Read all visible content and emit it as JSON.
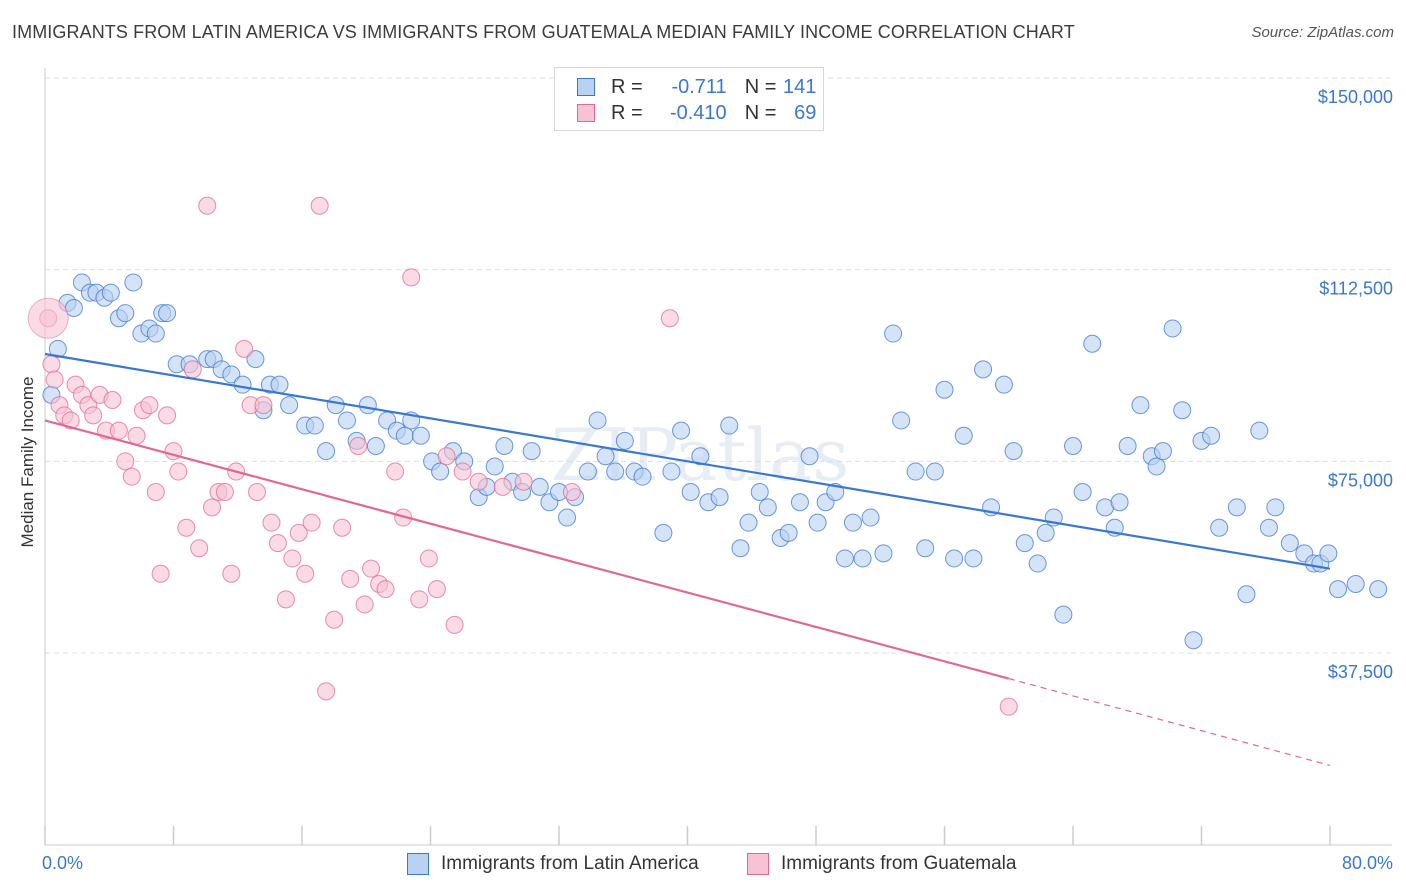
{
  "title": "IMMIGRANTS FROM LATIN AMERICA VS IMMIGRANTS FROM GUATEMALA MEDIAN FAMILY INCOME CORRELATION CHART",
  "source": "Source: ZipAtlas.com",
  "legend": {
    "r_label": "R =",
    "n_label": "N =",
    "rows": [
      {
        "r": "-0.711",
        "n": "141"
      },
      {
        "r": "-0.410",
        "n": "69"
      }
    ]
  },
  "watermark": "ZIPatlas",
  "colors": {
    "blue": "#3a78d0",
    "blue_fill": "#b9d1f2",
    "pink": "#e0698f",
    "pink_fill": "#f7c2d3",
    "tick_label": "#3a78d0",
    "grid": "#dedede"
  },
  "chart_data": {
    "type": "scatter",
    "title": "IMMIGRANTS FROM LATIN AMERICA VS IMMIGRANTS FROM GUATEMALA MEDIAN FAMILY INCOME CORRELATION CHART",
    "xlabel": "",
    "ylabel": "Median Family Income",
    "xlim": [
      0,
      80
    ],
    "ylim": [
      10000,
      155000
    ],
    "x_tick_labels": [
      {
        "value": 0,
        "label": "0.0%"
      },
      {
        "value": 80,
        "label": "80.0%"
      }
    ],
    "y_ticks": [
      {
        "value": 37500,
        "label": "$37,500"
      },
      {
        "value": 75000,
        "label": "$75,000"
      },
      {
        "value": 112500,
        "label": "$112,500"
      },
      {
        "value": 150000,
        "label": "$150,000"
      }
    ],
    "series": [
      {
        "name": "Immigrants from Latin America",
        "r": -0.711,
        "n": 141,
        "trend": {
          "x0": 0,
          "y0": 96000,
          "x1": 80,
          "y1": 54000
        },
        "points": [
          [
            0.4,
            88
          ],
          [
            0.8,
            97
          ],
          [
            1.4,
            106
          ],
          [
            1.8,
            105
          ],
          [
            2.3,
            110
          ],
          [
            2.8,
            108
          ],
          [
            3.2,
            108
          ],
          [
            3.7,
            107
          ],
          [
            4.1,
            108
          ],
          [
            4.6,
            103
          ],
          [
            5.0,
            104
          ],
          [
            5.5,
            110
          ],
          [
            6.0,
            100
          ],
          [
            6.5,
            101
          ],
          [
            6.9,
            100
          ],
          [
            7.3,
            104
          ],
          [
            7.6,
            104
          ],
          [
            8.2,
            94
          ],
          [
            9.0,
            94
          ],
          [
            10.1,
            95
          ],
          [
            10.5,
            95
          ],
          [
            11.0,
            93
          ],
          [
            11.6,
            92
          ],
          [
            12.3,
            90
          ],
          [
            13.1,
            95
          ],
          [
            13.6,
            85
          ],
          [
            14.0,
            90
          ],
          [
            14.6,
            90
          ],
          [
            15.2,
            86
          ],
          [
            16.2,
            82
          ],
          [
            16.8,
            82
          ],
          [
            17.5,
            77
          ],
          [
            18.1,
            86
          ],
          [
            18.8,
            83
          ],
          [
            19.4,
            79
          ],
          [
            20.1,
            86
          ],
          [
            20.6,
            78
          ],
          [
            21.3,
            83
          ],
          [
            21.9,
            81
          ],
          [
            22.4,
            80
          ],
          [
            22.8,
            83
          ],
          [
            23.4,
            80
          ],
          [
            24.1,
            75
          ],
          [
            24.6,
            73
          ],
          [
            25.4,
            77
          ],
          [
            26.1,
            75
          ],
          [
            27.0,
            68
          ],
          [
            27.5,
            70
          ],
          [
            28.0,
            74
          ],
          [
            28.6,
            78
          ],
          [
            29.1,
            71
          ],
          [
            29.7,
            69
          ],
          [
            30.3,
            77
          ],
          [
            30.8,
            70
          ],
          [
            31.4,
            67
          ],
          [
            32.0,
            69
          ],
          [
            32.5,
            64
          ],
          [
            33.0,
            68
          ],
          [
            33.8,
            73
          ],
          [
            34.4,
            83
          ],
          [
            34.9,
            76
          ],
          [
            35.5,
            73
          ],
          [
            36.1,
            79
          ],
          [
            36.7,
            73
          ],
          [
            37.2,
            72
          ],
          [
            38.5,
            61
          ],
          [
            39.0,
            73
          ],
          [
            39.6,
            81
          ],
          [
            40.2,
            69
          ],
          [
            40.8,
            76
          ],
          [
            41.3,
            67
          ],
          [
            42.0,
            68
          ],
          [
            42.6,
            82
          ],
          [
            43.3,
            58
          ],
          [
            43.8,
            63
          ],
          [
            44.5,
            69
          ],
          [
            45.0,
            66
          ],
          [
            45.8,
            60
          ],
          [
            46.3,
            61
          ],
          [
            47.0,
            67
          ],
          [
            47.6,
            76
          ],
          [
            48.1,
            63
          ],
          [
            48.6,
            67
          ],
          [
            49.2,
            69
          ],
          [
            49.8,
            56
          ],
          [
            50.3,
            63
          ],
          [
            50.9,
            56
          ],
          [
            51.4,
            64
          ],
          [
            52.2,
            57
          ],
          [
            52.8,
            100
          ],
          [
            53.3,
            83
          ],
          [
            54.2,
            73
          ],
          [
            54.8,
            58
          ],
          [
            55.4,
            73
          ],
          [
            56.0,
            89
          ],
          [
            56.6,
            56
          ],
          [
            57.2,
            80
          ],
          [
            57.8,
            56
          ],
          [
            58.4,
            93
          ],
          [
            58.9,
            66
          ],
          [
            59.7,
            90
          ],
          [
            60.3,
            77
          ],
          [
            61.0,
            59
          ],
          [
            61.8,
            55
          ],
          [
            62.3,
            61
          ],
          [
            62.8,
            64
          ],
          [
            63.4,
            45
          ],
          [
            64.0,
            78
          ],
          [
            64.6,
            69
          ],
          [
            65.2,
            98
          ],
          [
            66.0,
            66
          ],
          [
            66.6,
            62
          ],
          [
            66.9,
            67
          ],
          [
            67.4,
            78
          ],
          [
            68.2,
            86
          ],
          [
            68.9,
            76
          ],
          [
            69.2,
            74
          ],
          [
            69.6,
            77
          ],
          [
            70.2,
            101
          ],
          [
            70.8,
            85
          ],
          [
            71.5,
            40
          ],
          [
            72.0,
            79
          ],
          [
            72.6,
            80
          ],
          [
            73.1,
            62
          ],
          [
            74.2,
            66
          ],
          [
            74.8,
            49
          ],
          [
            75.6,
            81
          ],
          [
            76.2,
            62
          ],
          [
            76.6,
            66
          ],
          [
            77.5,
            59
          ],
          [
            78.4,
            57
          ],
          [
            79.0,
            55
          ],
          [
            79.4,
            55
          ],
          [
            79.9,
            57
          ],
          [
            80.5,
            50
          ],
          [
            81.6,
            51
          ],
          [
            83.0,
            50
          ]
        ]
      },
      {
        "name": "Immigrants from Guatemala",
        "r": -0.41,
        "n": 69,
        "trend": {
          "x0": 0,
          "y0": 83000,
          "x1": 60,
          "y1": 32500,
          "dashed_to": {
            "x": 80,
            "y": 15500
          }
        },
        "points": [
          [
            0.2,
            103
          ],
          [
            0.4,
            94
          ],
          [
            0.6,
            91
          ],
          [
            0.9,
            86
          ],
          [
            1.2,
            84
          ],
          [
            1.6,
            83
          ],
          [
            1.9,
            90
          ],
          [
            2.3,
            88
          ],
          [
            2.7,
            86
          ],
          [
            3.0,
            84
          ],
          [
            3.4,
            88
          ],
          [
            3.8,
            81
          ],
          [
            4.2,
            87
          ],
          [
            4.6,
            81
          ],
          [
            5.0,
            75
          ],
          [
            5.4,
            72
          ],
          [
            5.7,
            80
          ],
          [
            6.1,
            85
          ],
          [
            6.5,
            86
          ],
          [
            6.9,
            69
          ],
          [
            7.2,
            53
          ],
          [
            7.6,
            84
          ],
          [
            8.0,
            77
          ],
          [
            8.3,
            73
          ],
          [
            8.8,
            62
          ],
          [
            9.2,
            93
          ],
          [
            9.6,
            58
          ],
          [
            10.1,
            125
          ],
          [
            10.4,
            66
          ],
          [
            10.8,
            69
          ],
          [
            11.2,
            69
          ],
          [
            11.6,
            53
          ],
          [
            11.9,
            73
          ],
          [
            12.4,
            97
          ],
          [
            12.8,
            86
          ],
          [
            13.2,
            69
          ],
          [
            13.6,
            86
          ],
          [
            14.1,
            63
          ],
          [
            14.5,
            59
          ],
          [
            15.0,
            48
          ],
          [
            15.4,
            56
          ],
          [
            15.8,
            61
          ],
          [
            16.2,
            53
          ],
          [
            16.6,
            63
          ],
          [
            17.1,
            125
          ],
          [
            17.5,
            30
          ],
          [
            18.0,
            44
          ],
          [
            18.5,
            62
          ],
          [
            19.0,
            52
          ],
          [
            19.5,
            78
          ],
          [
            19.9,
            47
          ],
          [
            20.3,
            54
          ],
          [
            20.8,
            51
          ],
          [
            21.2,
            50
          ],
          [
            21.8,
            73
          ],
          [
            22.3,
            64
          ],
          [
            22.8,
            111
          ],
          [
            23.3,
            48
          ],
          [
            23.9,
            56
          ],
          [
            24.4,
            50
          ],
          [
            25.0,
            76
          ],
          [
            25.5,
            43
          ],
          [
            26.0,
            73
          ],
          [
            27.0,
            71
          ],
          [
            28.5,
            70
          ],
          [
            29.8,
            71
          ],
          [
            38.9,
            103
          ],
          [
            60.0,
            27
          ],
          [
            32.8,
            69
          ]
        ]
      }
    ]
  },
  "axes": {
    "y_label": "Median Family Income",
    "x_min_label": "0.0%",
    "x_max_label": "80.0%"
  },
  "bottom_legend": [
    {
      "label": "Immigrants from Latin America"
    },
    {
      "label": "Immigrants from Guatemala"
    }
  ]
}
